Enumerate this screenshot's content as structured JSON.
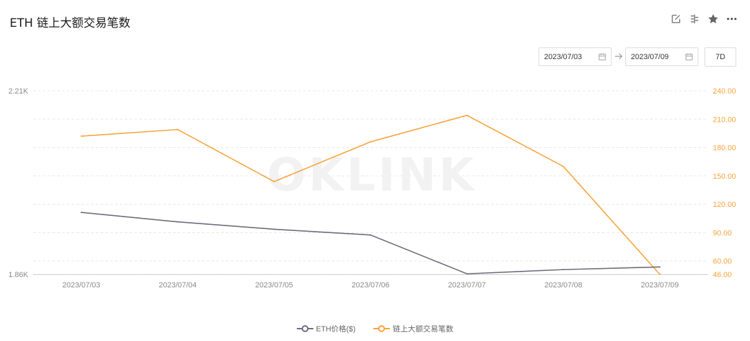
{
  "title": "ETH 链上大额交易笔数",
  "toolbar": {
    "icons": [
      "edit-icon",
      "compare-icon",
      "star-icon",
      "more-icon"
    ]
  },
  "date_range": {
    "start": "2023/07/03",
    "end": "2023/07/09",
    "preset": "7D"
  },
  "watermark": "OKLINK",
  "colors": {
    "price": "#6b6b7b",
    "count": "#f7a33a",
    "grid": "#e8e8e8",
    "axis_left": "#888888",
    "axis_right": "#f7a33a"
  },
  "chart_data": {
    "type": "line",
    "x": [
      "2023/07/03",
      "2023/07/04",
      "2023/07/05",
      "2023/07/06",
      "2023/07/07",
      "2023/07/08",
      "2023/07/09"
    ],
    "left_axis": {
      "tick_labels": [
        "2.21K",
        "1.86K"
      ],
      "ylim": [
        1.86,
        2.21
      ]
    },
    "right_axis": {
      "tick_labels": [
        "240.00",
        "210.00",
        "180.00",
        "150.00",
        "120.00",
        "90.00",
        "60.00",
        "46.00"
      ],
      "ticks": [
        240,
        210,
        180,
        150,
        120,
        90,
        60,
        46
      ],
      "ylim": [
        46,
        240
      ]
    },
    "grid": true,
    "legend_position": "bottom",
    "series": [
      {
        "name": "ETH价格($)",
        "axis": "left",
        "values": [
          1.978,
          1.96,
          1.946,
          1.935,
          1.861,
          1.869,
          1.874
        ]
      },
      {
        "name": "链上大额交易笔数",
        "axis": "right",
        "values": [
          192,
          199,
          144,
          186,
          214,
          160,
          46
        ]
      }
    ]
  }
}
